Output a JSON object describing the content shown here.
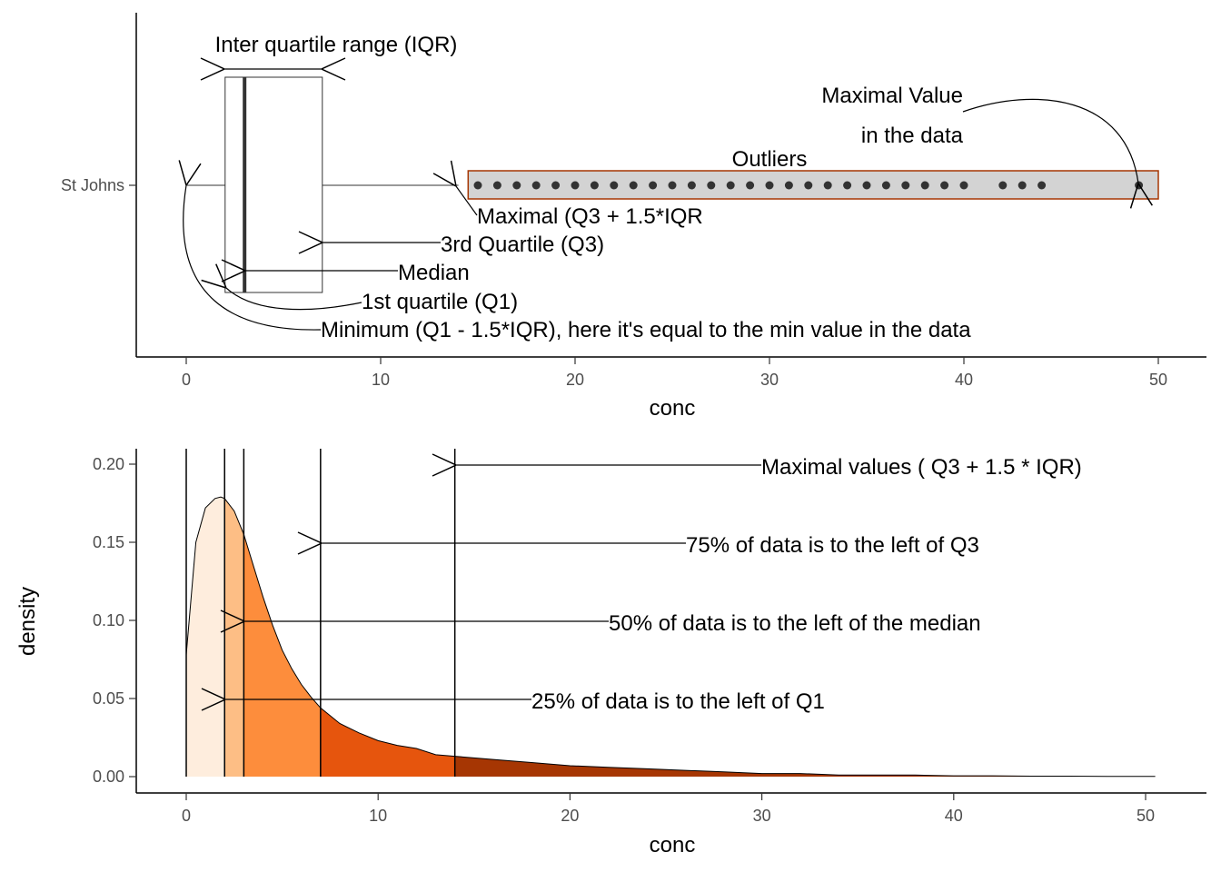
{
  "colors": {
    "axis": "#000000",
    "tick_text": "#4d4d4d",
    "outlier_point": "#333333",
    "outlier_box_fill": "#d3d3d3",
    "outlier_box_stroke": "#a63603",
    "outlier_label": "#a63603",
    "median_line": "#333333",
    "density_fills": [
      "#feeddd",
      "#fdbe85",
      "#fd8d3c",
      "#e6550d",
      "#a63603"
    ]
  },
  "chart_data": [
    {
      "type": "boxplot",
      "xlabel": "conc",
      "xticks": [
        0,
        10,
        20,
        30,
        40,
        50
      ],
      "xlim": [
        -2.5,
        52.5
      ],
      "category": "St Johns",
      "stats": {
        "min": 0,
        "q1": 2,
        "median": 3,
        "q3": 7,
        "upper_whisker": 14,
        "max": 49
      },
      "outliers": [
        15,
        16,
        17,
        18,
        19,
        20,
        21,
        22,
        23,
        24,
        25,
        26,
        27,
        28,
        29,
        30,
        31,
        32,
        33,
        34,
        35,
        36,
        37,
        38,
        39,
        40,
        42,
        43,
        44,
        49
      ],
      "outlier_region": [
        14.5,
        50
      ],
      "annotations": {
        "iqr": "Inter quartile range (IQR)",
        "max_value_line1": "Maximal Value",
        "max_value_line2": "in the data",
        "outliers": "Outliers",
        "maximal": "Maximal (Q3 + 1.5*IQR",
        "q3": "3rd Quartile (Q3)",
        "median": "Median",
        "q1": "1st quartile (Q1)",
        "minimum": "Minimum (Q1 - 1.5*IQR), here it's equal to the min value in the data"
      }
    },
    {
      "type": "area",
      "xlabel": "conc",
      "ylabel": "density",
      "xticks": [
        0,
        10,
        20,
        30,
        40,
        50
      ],
      "yticks": [
        0.0,
        0.05,
        0.1,
        0.15,
        0.2
      ],
      "ytick_labels": [
        "0.00",
        "0.05",
        "0.10",
        "0.15",
        "0.20"
      ],
      "xlim": [
        -2.6,
        53.1
      ],
      "ylim": [
        -0.009,
        0.21
      ],
      "x": [
        0,
        0.5,
        1,
        1.5,
        1.8,
        2,
        2.5,
        3,
        3.5,
        4,
        4.5,
        5,
        5.5,
        6,
        6.5,
        7,
        8,
        9,
        10,
        11,
        12,
        13,
        14,
        16,
        18,
        20,
        22,
        24,
        26,
        28,
        30,
        32,
        34,
        36,
        38,
        40,
        42,
        44,
        46,
        48,
        50,
        50.5
      ],
      "density": [
        0.078,
        0.15,
        0.172,
        0.178,
        0.179,
        0.178,
        0.17,
        0.155,
        0.135,
        0.115,
        0.097,
        0.081,
        0.069,
        0.059,
        0.051,
        0.044,
        0.034,
        0.028,
        0.023,
        0.02,
        0.018,
        0.014,
        0.013,
        0.011,
        0.009,
        0.007,
        0.006,
        0.005,
        0.004,
        0.003,
        0.002,
        0.002,
        0.001,
        0.001,
        0.001,
        0.0005,
        0.0005,
        0.0003,
        0.0003,
        0.0002,
        0.0002,
        0.0002
      ],
      "quantile_breaks": [
        2,
        3,
        7,
        14
      ],
      "vlines": [
        0,
        2,
        3,
        7,
        14
      ],
      "annotations": {
        "maximal": "Maximal values ( Q3 + 1.5 * IQR)",
        "q3": "75% of data is to the left of Q3",
        "median": "50% of data is to the left of the median",
        "q1": "25% of data is to the left of Q1"
      }
    }
  ]
}
